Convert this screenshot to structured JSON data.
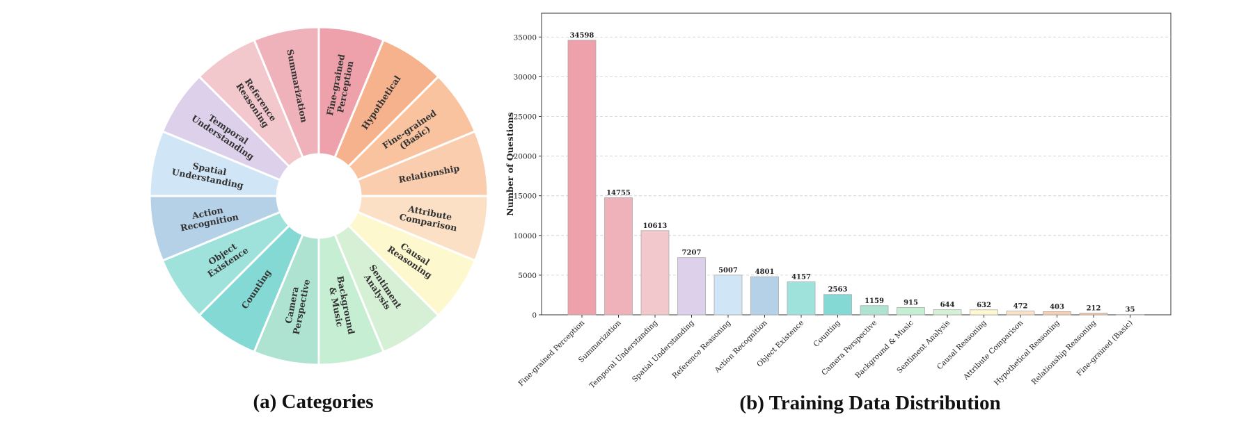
{
  "captions": {
    "a": "(a) Categories",
    "b": "(b) Training Data Distribution"
  },
  "chart_data": [
    {
      "type": "pie",
      "title": "(a) Categories",
      "donut": true,
      "segments": [
        {
          "label": "Summarization",
          "color": "#F0B2BA"
        },
        {
          "label": "Fine-grained\nPerception",
          "color": "#EEA1AB"
        },
        {
          "label": "Hypothetical",
          "color": "#F5B28C"
        },
        {
          "label": "Fine-grained\n(Basic)",
          "color": "#F8C39E"
        },
        {
          "label": "Relationship",
          "color": "#FACDAE"
        },
        {
          "label": "Attribute\nComparison",
          "color": "#FBE0C5"
        },
        {
          "label": "Causal\nReasoning",
          "color": "#FEF8CE"
        },
        {
          "label": "Sentiment\nAnalysis",
          "color": "#D6F0D5"
        },
        {
          "label": "Background\n& Music",
          "color": "#C5EED3"
        },
        {
          "label": "Camera\nPerspective",
          "color": "#ADE3D0"
        },
        {
          "label": "Counting",
          "color": "#85D9D4"
        },
        {
          "label": "Object\nExistence",
          "color": "#9FE2DC"
        },
        {
          "label": "Action\nRecognition",
          "color": "#B5D1E8"
        },
        {
          "label": "Spatial\nUnderstanding",
          "color": "#D0E5F6"
        },
        {
          "label": "Temporal\nUnderstanding",
          "color": "#DCD0EA"
        },
        {
          "label": "Reference\nReasoning",
          "color": "#F3C8CC"
        }
      ]
    },
    {
      "type": "bar",
      "title": "(b) Training Data Distribution",
      "xlabel": "",
      "ylabel": "Number of Questions",
      "ylim": [
        0,
        38000
      ],
      "yticks": [
        0,
        5000,
        10000,
        15000,
        20000,
        25000,
        30000,
        35000
      ],
      "grid": "y-dashed",
      "categories": [
        "Fine-grained Perception",
        "Summarization",
        "Temporal Understanding",
        "Spatial Understanding",
        "Reference Reasoning",
        "Action Recognition",
        "Object Existence",
        "Counting",
        "Camera Perspective",
        "Background & Music",
        "Sentiment Analysis",
        "Causal Reasoning",
        "Attribute Comparison",
        "Hypothetical Reasoning",
        "Relationship Reasoning",
        "Fine-grained (Basic)"
      ],
      "values": [
        34598,
        14755,
        10613,
        7207,
        5007,
        4801,
        4157,
        2563,
        1159,
        915,
        644,
        632,
        472,
        403,
        212,
        35
      ],
      "colors": [
        "#EEA1AB",
        "#F0B2BA",
        "#F3C8CC",
        "#DCD0EA",
        "#D0E5F6",
        "#B5D1E8",
        "#9FE2DC",
        "#85D9D4",
        "#ADE3D0",
        "#C5EED3",
        "#D6F0D5",
        "#FEF8CE",
        "#FBE0C5",
        "#FACDAE",
        "#F8C39E",
        "#F5B28C"
      ]
    }
  ]
}
